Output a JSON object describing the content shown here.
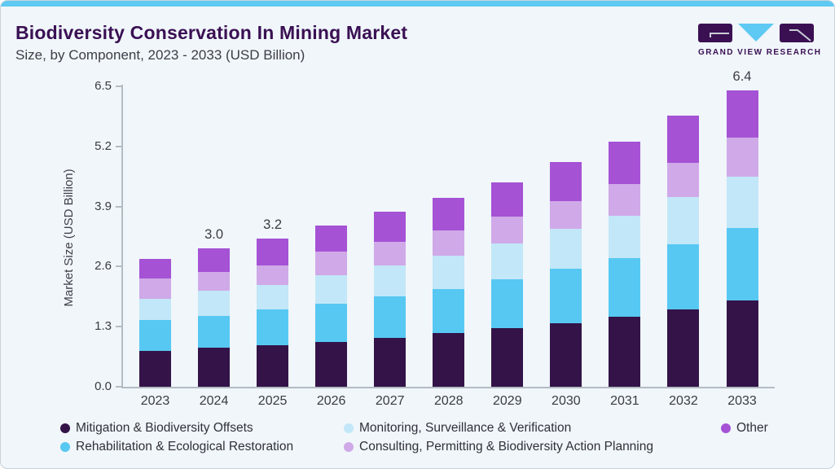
{
  "page": {
    "background": "#f0f6fa",
    "accent_color": "#5ec9f3",
    "brand_dark": "#3a1053"
  },
  "header": {
    "title": "Biodiversity Conservation In Mining Market",
    "subtitle": "Size, by Component, 2023 - 2033 (USD Billion)"
  },
  "logo": {
    "text": "GRAND VIEW RESEARCH",
    "mark_dark_color": "#3a1053",
    "mark_cyan_color": "#5ec9f3",
    "icons": [
      "gvr-g-mark",
      "gvr-v-triangle",
      "gvr-r-mark"
    ]
  },
  "chart_data": {
    "type": "bar",
    "stacked": true,
    "title": "Biodiversity Conservation In Mining Market Size, by Component, 2023 - 2033 (USD Billion)",
    "xlabel": "",
    "ylabel": "Market Size (USD Billion)",
    "ylim": [
      0,
      6.5
    ],
    "yticks": [
      "0.0",
      "1.3",
      "2.6",
      "3.9",
      "5.2",
      "6.5"
    ],
    "grid": false,
    "legend_position": "bottom",
    "categories": [
      "2023",
      "2024",
      "2025",
      "2026",
      "2027",
      "2028",
      "2029",
      "2030",
      "2031",
      "2032",
      "2033"
    ],
    "series": [
      {
        "name": "Mitigation & Biodiversity Offsets",
        "color": "#331348",
        "values": [
          0.78,
          0.84,
          0.89,
          0.97,
          1.06,
          1.16,
          1.26,
          1.38,
          1.51,
          1.68,
          1.86
        ]
      },
      {
        "name": "Rehabilitation & Ecological Restoration",
        "color": "#57c8f2",
        "values": [
          0.66,
          0.7,
          0.79,
          0.83,
          0.9,
          0.96,
          1.06,
          1.17,
          1.27,
          1.41,
          1.57
        ]
      },
      {
        "name": "Monitoring, Surveillance & Verification",
        "color": "#c2e7f8",
        "values": [
          0.47,
          0.53,
          0.53,
          0.62,
          0.66,
          0.71,
          0.78,
          0.86,
          0.92,
          1.01,
          1.11
        ]
      },
      {
        "name": "Consulting, Permitting & Biodiversity Action Planning",
        "color": "#d0a9e8",
        "values": [
          0.43,
          0.41,
          0.41,
          0.5,
          0.52,
          0.56,
          0.59,
          0.6,
          0.69,
          0.75,
          0.85
        ]
      },
      {
        "name": "Other",
        "color": "#a552d5",
        "values": [
          0.43,
          0.52,
          0.58,
          0.56,
          0.64,
          0.69,
          0.73,
          0.86,
          0.92,
          1.01,
          1.03
        ]
      }
    ],
    "totals_labeled": {
      "2024": "3.0",
      "2025": "3.2",
      "2033": "6.4"
    }
  }
}
